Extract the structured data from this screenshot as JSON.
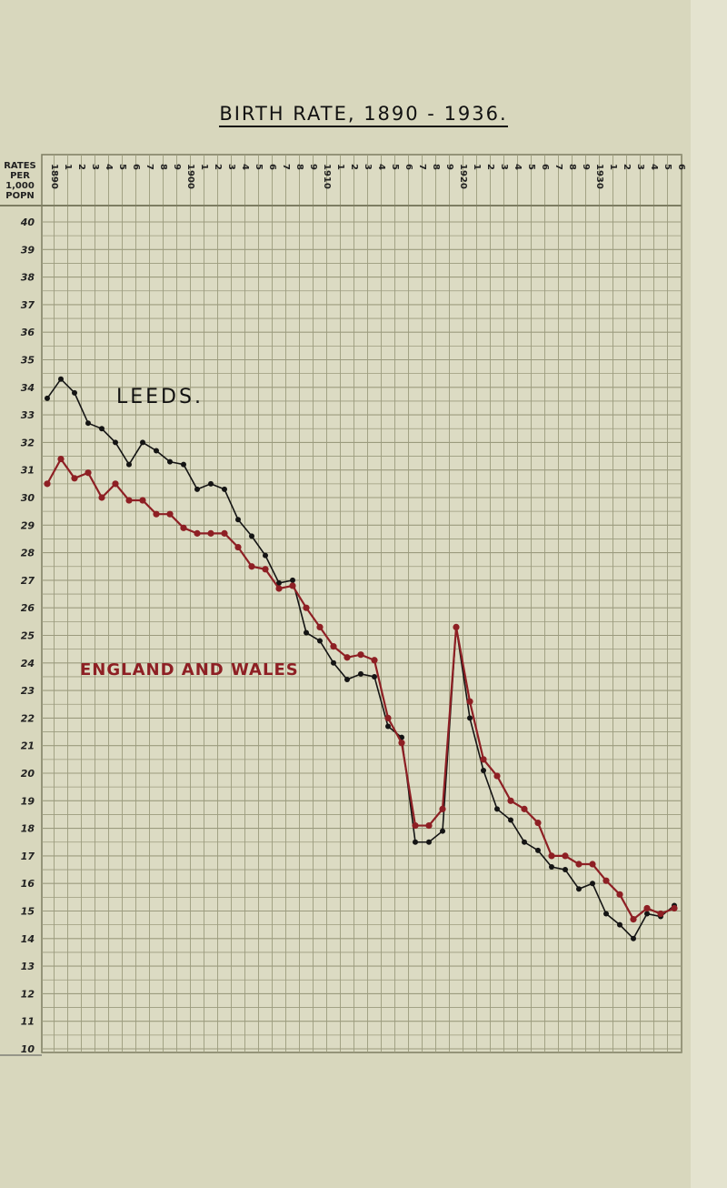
{
  "chart_data": {
    "type": "line",
    "title": "BIRTH RATE, 1890 - 1936.",
    "ylabel": [
      "RATES",
      "PER",
      "1,000",
      "POPN"
    ],
    "xlabel": "",
    "ylim": [
      10,
      40
    ],
    "xlim": [
      1890,
      1936
    ],
    "grid": true,
    "y_ticks": [
      40,
      39,
      38,
      37,
      36,
      35,
      34,
      33,
      32,
      31,
      30,
      29,
      28,
      27,
      26,
      25,
      24,
      23,
      22,
      21,
      20,
      19,
      18,
      17,
      16,
      15,
      14,
      13,
      12,
      11,
      10
    ],
    "x_tick_labels": [
      "1890",
      "1",
      "2",
      "3",
      "4",
      "5",
      "6",
      "7",
      "8",
      "9",
      "1900",
      "1",
      "2",
      "3",
      "4",
      "5",
      "6",
      "7",
      "8",
      "9",
      "1910",
      "1",
      "2",
      "3",
      "4",
      "5",
      "6",
      "7",
      "8",
      "9",
      "1920",
      "1",
      "2",
      "3",
      "4",
      "5",
      "6",
      "7",
      "8",
      "9",
      "1930",
      "1",
      "2",
      "3",
      "4",
      "5",
      "6"
    ],
    "x": [
      1890,
      1891,
      1892,
      1893,
      1894,
      1895,
      1896,
      1897,
      1898,
      1899,
      1900,
      1901,
      1902,
      1903,
      1904,
      1905,
      1906,
      1907,
      1908,
      1909,
      1910,
      1911,
      1912,
      1913,
      1914,
      1915,
      1916,
      1917,
      1918,
      1919,
      1920,
      1921,
      1922,
      1923,
      1924,
      1925,
      1926,
      1927,
      1928,
      1929,
      1930,
      1931,
      1932,
      1933,
      1934,
      1935,
      1936
    ],
    "series": [
      {
        "name": "LEEDS.",
        "color": "#141414",
        "values": [
          33.6,
          34.3,
          33.8,
          32.7,
          32.5,
          32.0,
          31.2,
          32.0,
          31.7,
          31.3,
          31.2,
          30.3,
          30.5,
          30.3,
          29.2,
          28.6,
          27.9,
          26.9,
          27.0,
          25.1,
          24.8,
          24.0,
          23.4,
          23.6,
          23.5,
          21.7,
          21.3,
          17.5,
          17.5,
          17.9,
          25.3,
          22.0,
          20.1,
          18.7,
          18.3,
          17.5,
          17.2,
          16.6,
          16.5,
          15.8,
          16.0,
          14.9,
          14.5,
          14.0,
          14.9,
          14.8,
          15.2
        ]
      },
      {
        "name": "ENGLAND AND WALES",
        "color": "#8e1f24",
        "values": [
          30.5,
          31.4,
          30.7,
          30.9,
          30.0,
          30.5,
          29.9,
          29.9,
          29.4,
          29.4,
          28.9,
          28.7,
          28.7,
          28.7,
          28.2,
          27.5,
          27.4,
          26.7,
          26.8,
          26.0,
          25.3,
          24.6,
          24.2,
          24.3,
          24.1,
          22.0,
          21.1,
          18.1,
          18.1,
          18.7,
          25.3,
          22.6,
          20.5,
          19.9,
          19.0,
          18.7,
          18.2,
          17.0,
          17.0,
          16.7,
          16.7,
          16.1,
          15.6,
          14.7,
          15.1,
          14.9,
          15.1
        ]
      }
    ]
  }
}
